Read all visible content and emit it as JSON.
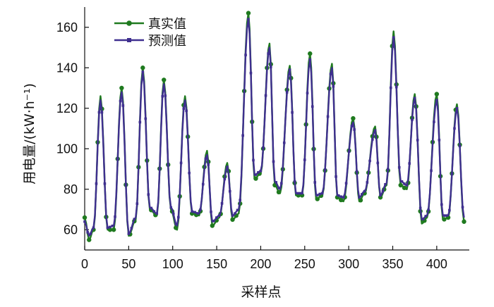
{
  "chart_data": {
    "type": "line",
    "xlabel": "采样点",
    "ylabel": "用电量/(kW·h⁻¹)",
    "xlim": [
      0,
      437
    ],
    "ylim": [
      50,
      170
    ],
    "xticks": [
      0,
      50,
      100,
      150,
      200,
      250,
      300,
      350,
      400
    ],
    "yticks": [
      60,
      80,
      100,
      120,
      140,
      160
    ],
    "legend_position": "top-left",
    "grid": false,
    "series": [
      {
        "name": "真实值",
        "color": "#1f7a1f",
        "marker": "circle",
        "anchors": [
          [
            0,
            66
          ],
          [
            5,
            55
          ],
          [
            10,
            60
          ],
          [
            18,
            126
          ],
          [
            26,
            60
          ],
          [
            33,
            60
          ],
          [
            42,
            130
          ],
          [
            50,
            57
          ],
          [
            58,
            65
          ],
          [
            66,
            140
          ],
          [
            74,
            70
          ],
          [
            82,
            67
          ],
          [
            90,
            134
          ],
          [
            98,
            70
          ],
          [
            105,
            60
          ],
          [
            114,
            126
          ],
          [
            122,
            68
          ],
          [
            130,
            67
          ],
          [
            139,
            99
          ],
          [
            145,
            62
          ],
          [
            153,
            66
          ],
          [
            162,
            93
          ],
          [
            168,
            65
          ],
          [
            175,
            68
          ],
          [
            186,
            167
          ],
          [
            193,
            85
          ],
          [
            200,
            88
          ],
          [
            210,
            152
          ],
          [
            216,
            82
          ],
          [
            222,
            78
          ],
          [
            233,
            141
          ],
          [
            240,
            77
          ],
          [
            247,
            77
          ],
          [
            256,
            147
          ],
          [
            263,
            75
          ],
          [
            270,
            77
          ],
          [
            281,
            142
          ],
          [
            287,
            76
          ],
          [
            294,
            74
          ],
          [
            305,
            115
          ],
          [
            312,
            74
          ],
          [
            318,
            78
          ],
          [
            330,
            111
          ],
          [
            336,
            76
          ],
          [
            343,
            82
          ],
          [
            351,
            158
          ],
          [
            359,
            82
          ],
          [
            366,
            80
          ],
          [
            375,
            127
          ],
          [
            383,
            63
          ],
          [
            389,
            66
          ],
          [
            400,
            127
          ],
          [
            407,
            65
          ],
          [
            413,
            66
          ],
          [
            423,
            122
          ],
          [
            431,
            64
          ]
        ]
      },
      {
        "name": "预测值",
        "color": "#3f2f8f",
        "marker": "square",
        "anchors": [
          [
            0,
            64
          ],
          [
            5,
            57
          ],
          [
            10,
            61
          ],
          [
            18,
            124
          ],
          [
            26,
            61
          ],
          [
            33,
            62
          ],
          [
            42,
            128
          ],
          [
            50,
            58
          ],
          [
            58,
            66
          ],
          [
            66,
            138
          ],
          [
            74,
            71
          ],
          [
            82,
            68
          ],
          [
            90,
            132
          ],
          [
            98,
            71
          ],
          [
            105,
            62
          ],
          [
            114,
            124
          ],
          [
            122,
            69
          ],
          [
            130,
            68
          ],
          [
            139,
            97
          ],
          [
            145,
            64
          ],
          [
            153,
            67
          ],
          [
            162,
            91
          ],
          [
            168,
            67
          ],
          [
            175,
            70
          ],
          [
            186,
            164
          ],
          [
            193,
            87
          ],
          [
            200,
            89
          ],
          [
            210,
            150
          ],
          [
            216,
            84
          ],
          [
            222,
            80
          ],
          [
            233,
            139
          ],
          [
            240,
            78
          ],
          [
            247,
            78
          ],
          [
            256,
            144
          ],
          [
            263,
            77
          ],
          [
            270,
            78
          ],
          [
            281,
            140
          ],
          [
            287,
            77
          ],
          [
            294,
            76
          ],
          [
            305,
            113
          ],
          [
            312,
            76
          ],
          [
            318,
            79
          ],
          [
            330,
            109
          ],
          [
            336,
            77
          ],
          [
            343,
            83
          ],
          [
            351,
            155
          ],
          [
            359,
            84
          ],
          [
            366,
            82
          ],
          [
            375,
            125
          ],
          [
            383,
            65
          ],
          [
            389,
            67
          ],
          [
            400,
            124
          ],
          [
            407,
            67
          ],
          [
            413,
            67
          ],
          [
            423,
            120
          ],
          [
            431,
            66
          ]
        ]
      }
    ]
  }
}
